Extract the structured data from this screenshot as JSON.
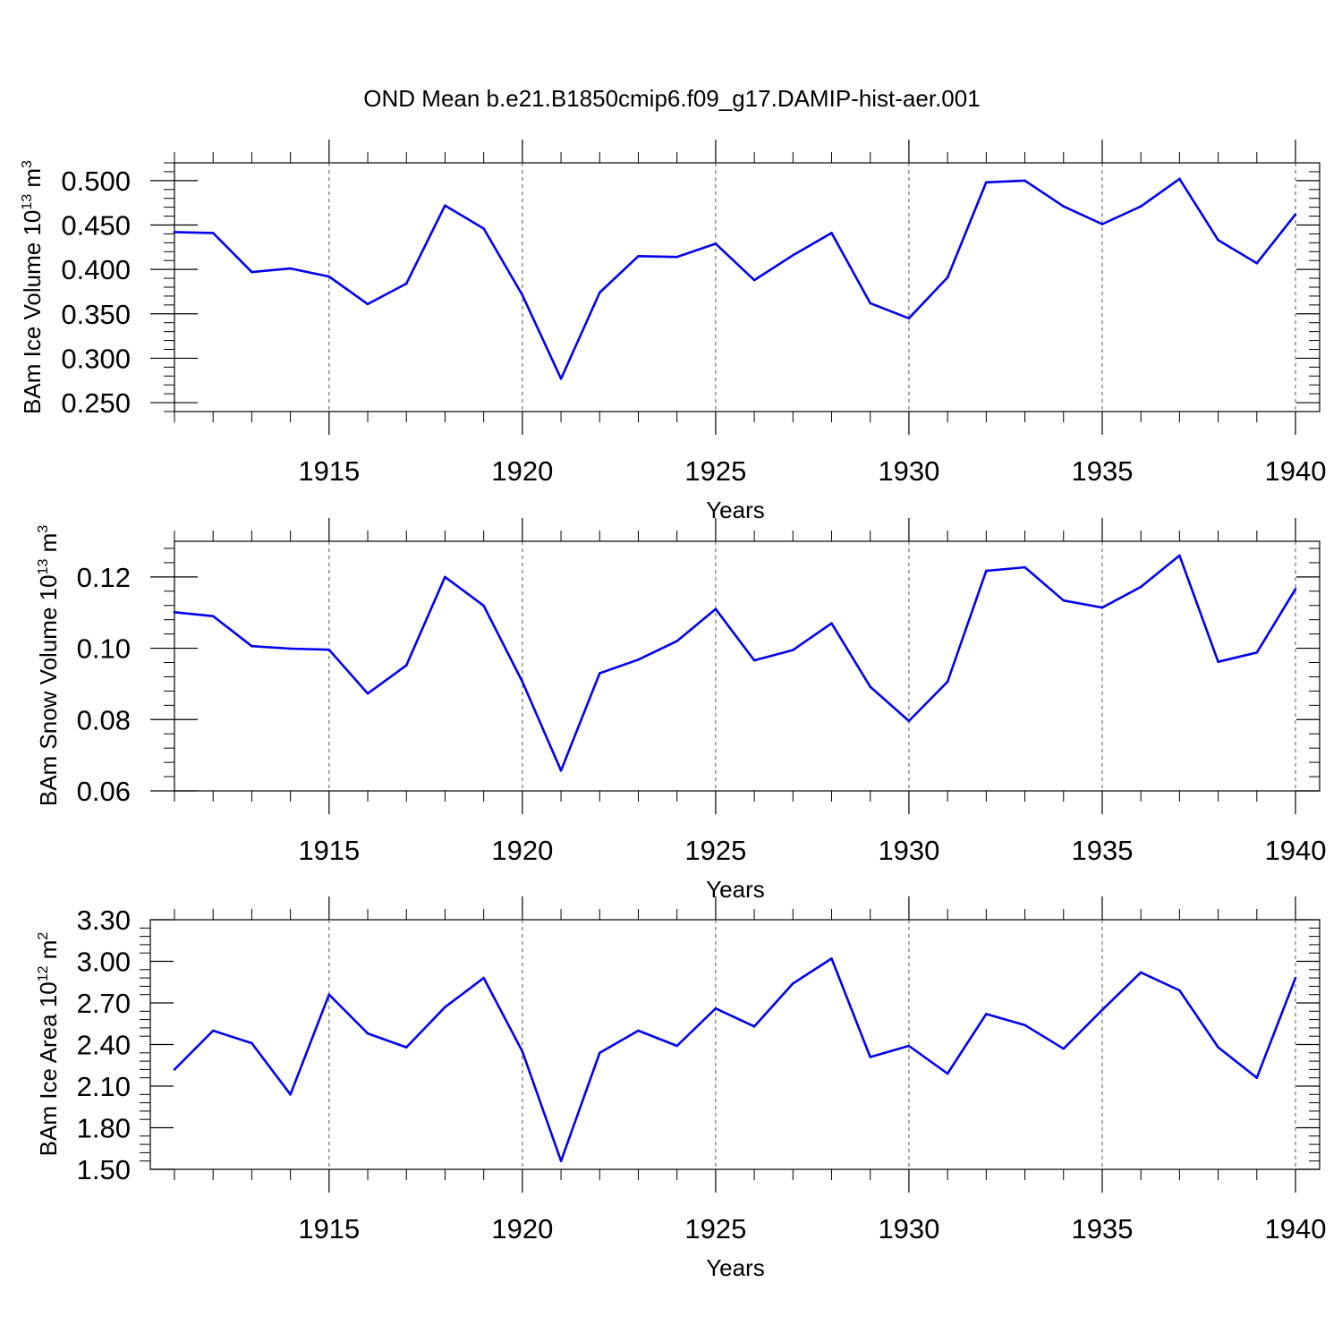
{
  "title": "OND Mean b.e21.B1850cmip6.f09_g17.DAMIP-hist-aer.001",
  "colors": {
    "line": "#0000ee",
    "axis": "#000000",
    "grid": "#555555"
  },
  "chart_data": [
    {
      "type": "line",
      "ylabel": "BAm Ice Volume 10",
      "ylabel_exp": "13",
      "ylabel_unit": " m",
      "ylabel_unit_exp": "3",
      "xlabel": "Years",
      "xlim": [
        1911,
        1940
      ],
      "ylim": [
        0.24,
        0.52
      ],
      "yticks": [
        "0.250",
        "0.300",
        "0.350",
        "0.400",
        "0.450",
        "0.500"
      ],
      "xticks": [
        "1915",
        "1920",
        "1925",
        "1930",
        "1935",
        "1940"
      ],
      "grid": "dashed vertical at major x ticks",
      "x": [
        1911,
        1912,
        1913,
        1914,
        1915,
        1916,
        1917,
        1918,
        1919,
        1920,
        1921,
        1922,
        1923,
        1924,
        1925,
        1926,
        1927,
        1928,
        1929,
        1930,
        1931,
        1932,
        1933,
        1934,
        1935,
        1936,
        1937,
        1938,
        1939,
        1940
      ],
      "values": [
        0.442,
        0.441,
        0.397,
        0.401,
        0.392,
        0.361,
        0.384,
        0.472,
        0.446,
        0.371,
        0.277,
        0.374,
        0.415,
        0.414,
        0.429,
        0.388,
        0.416,
        0.441,
        0.362,
        0.345,
        0.391,
        0.498,
        0.5,
        0.471,
        0.451,
        0.471,
        0.502,
        0.433,
        0.407,
        0.462
      ]
    },
    {
      "type": "line",
      "ylabel": "BAm Snow Volume 10",
      "ylabel_exp": "13",
      "ylabel_unit": " m",
      "ylabel_unit_exp": "3",
      "xlabel": "Years",
      "xlim": [
        1911,
        1940
      ],
      "ylim": [
        0.06,
        0.13
      ],
      "yticks": [
        "0.06",
        "0.08",
        "0.10",
        "0.12"
      ],
      "xticks": [
        "1915",
        "1920",
        "1925",
        "1930",
        "1935",
        "1940"
      ],
      "grid": "dashed vertical at major x ticks",
      "x": [
        1911,
        1912,
        1913,
        1914,
        1915,
        1916,
        1917,
        1918,
        1919,
        1920,
        1921,
        1922,
        1923,
        1924,
        1925,
        1926,
        1927,
        1928,
        1929,
        1930,
        1931,
        1932,
        1933,
        1934,
        1935,
        1936,
        1937,
        1938,
        1939,
        1940
      ],
      "values": [
        0.1101,
        0.109,
        0.1006,
        0.0999,
        0.0996,
        0.0873,
        0.0952,
        0.12,
        0.1119,
        0.0906,
        0.0657,
        0.093,
        0.0968,
        0.102,
        0.111,
        0.0966,
        0.0995,
        0.107,
        0.0892,
        0.0796,
        0.0906,
        0.1217,
        0.1227,
        0.1134,
        0.1114,
        0.1172,
        0.126,
        0.0962,
        0.0988,
        0.1166
      ]
    },
    {
      "type": "line",
      "ylabel": "BAm Ice Area 10",
      "ylabel_exp": "12",
      "ylabel_unit": " m",
      "ylabel_unit_exp": "2",
      "xlabel": "Years",
      "xlim": [
        1911,
        1940
      ],
      "ylim": [
        1.5,
        3.3
      ],
      "yticks": [
        "1.50",
        "1.80",
        "2.10",
        "2.40",
        "2.70",
        "3.00",
        "3.30"
      ],
      "xticks": [
        "1915",
        "1920",
        "1925",
        "1930",
        "1935",
        "1940"
      ],
      "grid": "dashed vertical at major x ticks",
      "x": [
        1911,
        1912,
        1913,
        1914,
        1915,
        1916,
        1917,
        1918,
        1919,
        1920,
        1921,
        1922,
        1923,
        1924,
        1925,
        1926,
        1927,
        1928,
        1929,
        1930,
        1931,
        1932,
        1933,
        1934,
        1935,
        1936,
        1937,
        1938,
        1939,
        1940
      ],
      "values": [
        2.22,
        2.5,
        2.41,
        2.04,
        2.76,
        2.48,
        2.38,
        2.67,
        2.88,
        2.35,
        1.56,
        2.34,
        2.5,
        2.39,
        2.66,
        2.53,
        2.84,
        3.02,
        2.31,
        2.39,
        2.19,
        2.62,
        2.54,
        2.37,
        2.65,
        2.92,
        2.79,
        2.38,
        2.16,
        2.88
      ]
    }
  ]
}
